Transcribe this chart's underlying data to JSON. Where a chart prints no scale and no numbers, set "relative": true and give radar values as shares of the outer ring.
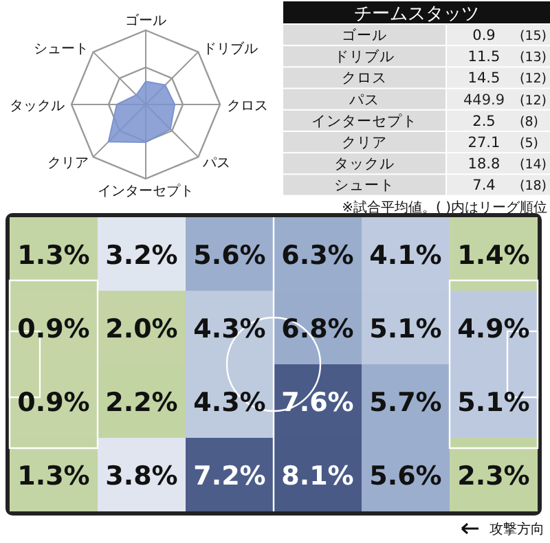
{
  "chart_data": [
    {
      "type": "radar",
      "relative": true,
      "categories": [
        "ゴール",
        "ドリブル",
        "クロス",
        "パス",
        "インターセプト",
        "クリア",
        "タックル",
        "シュート"
      ],
      "series": [
        {
          "color": "#7b93cf",
          "values": [
            0.31,
            0.37,
            0.39,
            0.47,
            0.51,
            0.71,
            0.39,
            0.18
          ]
        }
      ]
    },
    {
      "type": "other",
      "title": "チームスタッツ",
      "categories": [
        "ゴール",
        "ドリブル",
        "クロス",
        "パス",
        "インターセプト",
        "クリア",
        "タックル",
        "シュート"
      ],
      "data_labels": true,
      "series": [
        {
          "values": [
            0.9,
            11.5,
            14.5,
            449.9,
            2.5,
            27.1,
            18.8,
            7.4
          ]
        },
        {
          "values": [
            15,
            13,
            12,
            12,
            8,
            5,
            14,
            18
          ],
          "value_labels": [
            "(15)",
            "(13)",
            "(12)",
            "(12)",
            "(8)",
            "(5)",
            "(14)",
            "(18)"
          ]
        }
      ],
      "annotations": [
        "※試合平均値。( )内はリーグ順位"
      ]
    },
    {
      "type": "heatmap",
      "categories": [
        null,
        null,
        null,
        null,
        null,
        null
      ],
      "y_categories": [
        null,
        null,
        null,
        null
      ],
      "cells": [
        [
          1.3,
          3.2,
          5.6,
          6.3,
          4.1,
          1.4
        ],
        [
          0.9,
          2.0,
          4.3,
          6.8,
          5.1,
          4.9
        ],
        [
          0.9,
          2.2,
          4.3,
          7.6,
          5.7,
          5.1
        ],
        [
          1.3,
          3.8,
          7.2,
          8.1,
          5.6,
          2.3
        ]
      ],
      "cell_labels": [
        [
          "1.3%",
          "3.2%",
          "5.6%",
          "6.3%",
          "4.1%",
          "1.4%"
        ],
        [
          "0.9%",
          "2.0%",
          "4.3%",
          "6.8%",
          "5.1%",
          "4.9%"
        ],
        [
          "0.9%",
          "2.2%",
          "4.3%",
          "7.6%",
          "5.7%",
          "5.1%"
        ],
        [
          "1.3%",
          "3.8%",
          "7.2%",
          "8.1%",
          "5.6%",
          "2.3%"
        ]
      ],
      "colors": [
        [
          "#bccf98",
          "#dde3ee",
          "#97aacb",
          "#97aacb",
          "#b9c6dc",
          "#bccf98"
        ],
        [
          "#bccf98",
          "#bccf98",
          "#b9c6dc",
          "#97aacb",
          "#b9c6dc",
          "#b9c6dc"
        ],
        [
          "#bccf98",
          "#bccf98",
          "#b9c6dc",
          "#4a5a87",
          "#97aacb",
          "#b9c6dc"
        ],
        [
          "#bccf98",
          "#dde3ee",
          "#4a5a87",
          "#4a5a87",
          "#97aacb",
          "#bccf98"
        ]
      ],
      "annotations": [
        "攻撃方向"
      ]
    }
  ]
}
